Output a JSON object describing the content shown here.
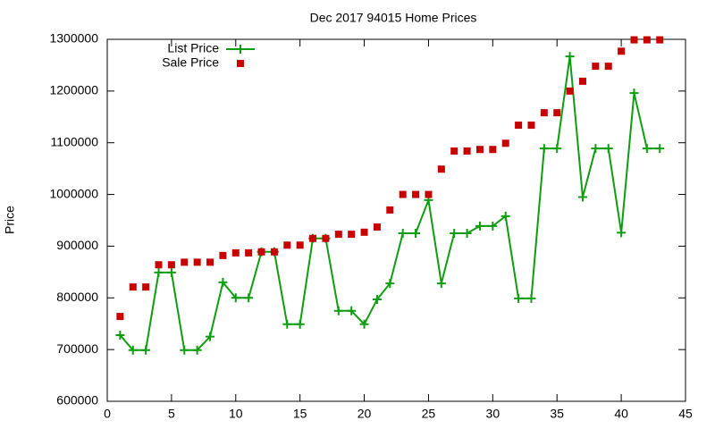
{
  "chart_data": {
    "type": "line",
    "title": "Dec 2017 94015 Home Prices",
    "y_label": "Price",
    "x": [
      1,
      2,
      3,
      4,
      5,
      6,
      7,
      8,
      9,
      10,
      11,
      12,
      13,
      14,
      15,
      16,
      17,
      18,
      19,
      20,
      21,
      22,
      23,
      24,
      25,
      26,
      27,
      28,
      29,
      30,
      31,
      32,
      33,
      34,
      35,
      36,
      37,
      38,
      39,
      40,
      41,
      42,
      43
    ],
    "series": [
      {
        "name": "List Price",
        "color": "#109c10",
        "mode": "lines+markers",
        "marker": "plus",
        "values": [
          728000,
          699000,
          699000,
          849000,
          849000,
          699000,
          699000,
          725000,
          830000,
          800000,
          800000,
          889000,
          889000,
          749000,
          749000,
          915000,
          915000,
          775000,
          775000,
          749000,
          797000,
          828000,
          925000,
          925000,
          989000,
          828000,
          925000,
          925000,
          939000,
          939000,
          958000,
          799000,
          799000,
          1089000,
          1089000,
          1267000,
          995000,
          1089000,
          1089000,
          926000,
          1196000,
          1089000,
          1089000
        ]
      },
      {
        "name": "Sale Price",
        "color": "#c80000",
        "mode": "markers",
        "marker": "square",
        "values": [
          764000,
          821000,
          821000,
          864000,
          864000,
          869000,
          869000,
          869000,
          882000,
          887000,
          887000,
          889000,
          889000,
          902000,
          902000,
          915000,
          915000,
          923000,
          923000,
          927000,
          937000,
          970000,
          1000000,
          1000000,
          1000000,
          1049000,
          1084000,
          1084000,
          1087000,
          1087000,
          1099000,
          1134000,
          1134000,
          1158000,
          1158000,
          1200000,
          1219000,
          1248000,
          1248000,
          1277000,
          1299000,
          1299000,
          1299000
        ]
      }
    ],
    "xlim": [
      0,
      45
    ],
    "xticks": [
      0,
      5,
      10,
      15,
      20,
      25,
      30,
      35,
      40,
      45
    ],
    "ylim": [
      600000,
      1300000
    ],
    "yticks": [
      600000,
      700000,
      800000,
      900000,
      1000000,
      1100000,
      1200000,
      1300000
    ],
    "legend": "top-left"
  }
}
